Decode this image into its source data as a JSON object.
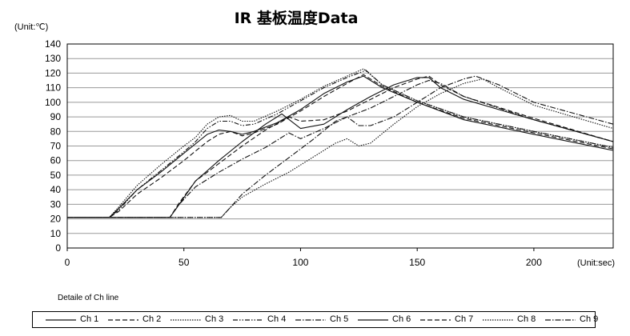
{
  "chart_data": {
    "type": "line",
    "title": "IR 基板温度Data",
    "ylabel": "(Unit:℃)",
    "xlabel": "(Unit:sec)",
    "xlim": [
      0,
      234
    ],
    "ylim": [
      0,
      140
    ],
    "xticks": [
      "0",
      "50",
      "100",
      "150",
      "200"
    ],
    "xtick_values": [
      0,
      50,
      100,
      150,
      200
    ],
    "yticks": [
      "0",
      "10",
      "20",
      "30",
      "40",
      "50",
      "60",
      "70",
      "80",
      "90",
      "100",
      "110",
      "120",
      "130",
      "140"
    ],
    "ytick_values": [
      0,
      10,
      20,
      30,
      40,
      50,
      60,
      70,
      80,
      90,
      100,
      110,
      120,
      130,
      140
    ],
    "grid": "horizontal",
    "legend_heading": "Detaile of Ch line",
    "series": [
      {
        "name": "Ch 1",
        "dash": "solid",
        "x": [
          0,
          18,
          22,
          30,
          40,
          50,
          60,
          65,
          70,
          75,
          80,
          90,
          100,
          110,
          120,
          127,
          135,
          150,
          170,
          200,
          234
        ],
        "y": [
          21,
          21,
          27,
          40,
          52,
          65,
          78,
          81,
          80,
          78,
          80,
          86,
          95,
          106,
          114,
          118,
          110,
          100,
          88,
          78,
          67
        ]
      },
      {
        "name": "Ch 2",
        "dash": "dash",
        "x": [
          0,
          18,
          22,
          30,
          40,
          50,
          60,
          65,
          70,
          75,
          80,
          90,
          100,
          110,
          120,
          127,
          135,
          150,
          170,
          200,
          234
        ],
        "y": [
          21,
          21,
          25,
          37,
          48,
          60,
          73,
          78,
          80,
          77,
          79,
          85,
          94,
          104,
          113,
          119,
          111,
          100,
          89,
          79,
          68
        ]
      },
      {
        "name": "Ch 3",
        "dash": "dot",
        "x": [
          0,
          18,
          22,
          30,
          40,
          50,
          55,
          60,
          65,
          70,
          75,
          80,
          90,
          100,
          110,
          120,
          127,
          135,
          150,
          170,
          200,
          234
        ],
        "y": [
          21,
          21,
          28,
          43,
          57,
          70,
          76,
          85,
          90,
          91,
          87,
          87,
          94,
          102,
          111,
          118,
          123,
          112,
          101,
          90,
          80,
          69
        ]
      },
      {
        "name": "Ch 4",
        "dash": "dashdotdot",
        "x": [
          0,
          18,
          22,
          30,
          40,
          50,
          55,
          60,
          65,
          70,
          75,
          80,
          90,
          100,
          110,
          120,
          128,
          135,
          150,
          170,
          200,
          234
        ],
        "y": [
          21,
          21,
          26,
          40,
          53,
          66,
          73,
          82,
          87,
          87,
          84,
          85,
          92,
          101,
          110,
          117,
          122,
          112,
          101,
          90,
          80,
          69
        ]
      },
      {
        "name": "Ch 5",
        "dash": "dashdot",
        "x": [
          0,
          44,
          48,
          55,
          65,
          75,
          85,
          95,
          100,
          110,
          120,
          130,
          140,
          150,
          155,
          160,
          170,
          200,
          234
        ],
        "y": [
          21,
          21,
          30,
          42,
          52,
          61,
          69,
          79,
          75,
          82,
          90,
          96,
          104,
          112,
          115,
          113,
          104,
          88,
          73
        ]
      },
      {
        "name": "Ch 6",
        "dash": "solid",
        "x": [
          0,
          44,
          48,
          55,
          65,
          75,
          85,
          92,
          100,
          110,
          120,
          130,
          140,
          150,
          155,
          160,
          170,
          200,
          234
        ],
        "y": [
          21,
          21,
          30,
          46,
          60,
          73,
          85,
          92,
          82,
          85,
          95,
          104,
          112,
          117,
          117,
          110,
          102,
          88,
          73
        ]
      },
      {
        "name": "Ch 7",
        "dash": "dash",
        "x": [
          0,
          44,
          48,
          55,
          65,
          75,
          85,
          95,
          100,
          110,
          120,
          130,
          140,
          150,
          155,
          160,
          170,
          200,
          234
        ],
        "y": [
          21,
          21,
          31,
          46,
          58,
          70,
          81,
          90,
          87,
          88,
          94,
          102,
          110,
          116,
          118,
          112,
          104,
          89,
          73
        ]
      },
      {
        "name": "Ch 8",
        "dash": "dot",
        "x": [
          0,
          66,
          70,
          75,
          85,
          95,
          105,
          115,
          120,
          125,
          130,
          140,
          150,
          160,
          170,
          178,
          185,
          200,
          234
        ],
        "y": [
          21,
          21,
          28,
          35,
          44,
          52,
          62,
          72,
          75,
          70,
          72,
          85,
          97,
          106,
          113,
          116,
          110,
          98,
          82
        ]
      },
      {
        "name": "Ch 9",
        "dash": "dashdot",
        "x": [
          0,
          66,
          70,
          75,
          85,
          95,
          105,
          115,
          120,
          125,
          130,
          140,
          150,
          160,
          170,
          175,
          185,
          200,
          234
        ],
        "y": [
          21,
          21,
          28,
          37,
          50,
          62,
          74,
          87,
          90,
          84,
          84,
          90,
          100,
          110,
          116,
          118,
          112,
          100,
          85
        ]
      }
    ]
  }
}
